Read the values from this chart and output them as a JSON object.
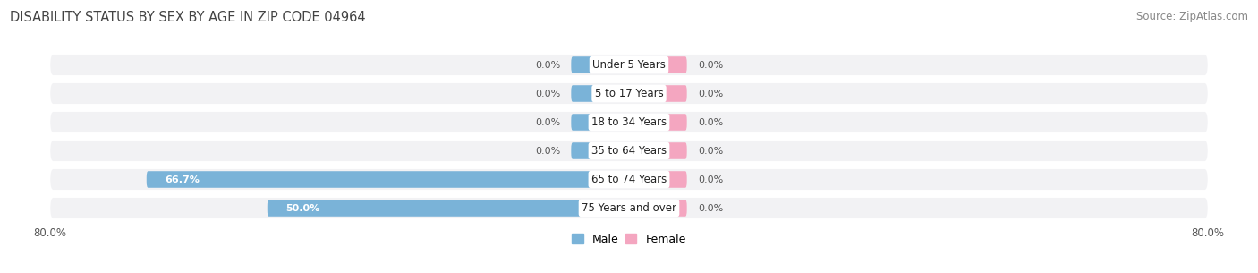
{
  "title": "DISABILITY STATUS BY SEX BY AGE IN ZIP CODE 04964",
  "source": "Source: ZipAtlas.com",
  "categories": [
    "Under 5 Years",
    "5 to 17 Years",
    "18 to 34 Years",
    "35 to 64 Years",
    "65 to 74 Years",
    "75 Years and over"
  ],
  "male_values": [
    0.0,
    0.0,
    0.0,
    0.0,
    66.7,
    50.0
  ],
  "female_values": [
    0.0,
    0.0,
    0.0,
    0.0,
    0.0,
    0.0
  ],
  "male_color": "#7ab3d8",
  "female_color": "#f4a6c0",
  "row_bg_color": "#e8e8ec",
  "xlim": 80.0,
  "legend_male": "Male",
  "legend_female": "Female",
  "title_fontsize": 10.5,
  "source_fontsize": 8.5,
  "bar_label_fontsize": 8.0,
  "category_fontsize": 8.5,
  "axis_tick_fontsize": 8.5,
  "stub_size": 8.0,
  "bar_height": 0.58
}
